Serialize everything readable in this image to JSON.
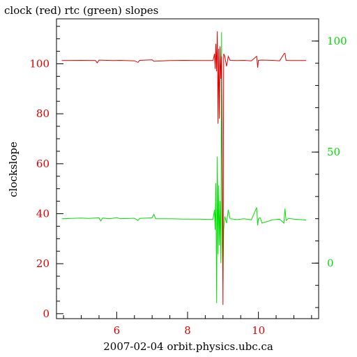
{
  "chart_data": {
    "type": "line",
    "title": "clock (red) rtc (green) slopes",
    "xlabel": "2007-02-04  orbit.physics.ubc.ca",
    "ylabel": "clockslope",
    "xlim": [
      4.3,
      11.7
    ],
    "ylim_left": [
      -2,
      118
    ],
    "ylim_right": [
      -25,
      110
    ],
    "x_ticks": [
      6,
      8,
      10
    ],
    "y_ticks_left": [
      0,
      20,
      40,
      60,
      80,
      100
    ],
    "y_ticks_right": [
      0,
      50,
      100
    ],
    "grid": false,
    "colors": {
      "clock": "#e00000",
      "rtc": "#00e000",
      "axis": "#000000",
      "left_tick_labels": "#e00000",
      "right_tick_labels": "#00e000"
    },
    "series": [
      {
        "name": "clock",
        "axis": "left",
        "color": "#e00000",
        "x": [
          4.45,
          5.0,
          5.4,
          5.45,
          5.5,
          5.9,
          6.1,
          6.5,
          6.6,
          6.65,
          7.0,
          7.05,
          7.5,
          7.9,
          8.3,
          8.6,
          8.72,
          8.76,
          8.78,
          8.8,
          8.82,
          8.84,
          8.86,
          8.88,
          8.9,
          8.92,
          8.94,
          8.96,
          8.98,
          9.0,
          9.02,
          9.05,
          9.1,
          9.15,
          9.2,
          9.4,
          9.6,
          9.8,
          9.95,
          9.98,
          10.0,
          10.05,
          10.4,
          10.6,
          10.72,
          10.75,
          10.78,
          10.85,
          11.0,
          11.2,
          11.35
        ],
        "y": [
          101.3,
          101.4,
          101.3,
          100.4,
          101.5,
          101.3,
          101.4,
          101.2,
          100.6,
          101.4,
          101.6,
          101.0,
          101.3,
          101.4,
          101.3,
          101.3,
          101.3,
          104.0,
          98.0,
          108.0,
          97.0,
          113.0,
          76.0,
          106.0,
          78.0,
          107.0,
          94.0,
          103.0,
          56.0,
          3.5,
          104.0,
          103.0,
          99.0,
          103.0,
          101.4,
          101.3,
          101.4,
          101.2,
          103.0,
          98.5,
          101.3,
          101.5,
          101.4,
          101.2,
          104.0,
          104.2,
          101.4,
          101.3,
          101.3,
          101.3,
          101.3
        ]
      },
      {
        "name": "rtc",
        "axis": "right",
        "color": "#00e000",
        "x": [
          4.45,
          5.0,
          5.2,
          5.5,
          5.55,
          5.6,
          5.8,
          6.0,
          6.1,
          6.5,
          6.6,
          6.65,
          7.0,
          7.05,
          7.1,
          7.5,
          7.9,
          8.3,
          8.6,
          8.72,
          8.76,
          8.78,
          8.8,
          8.82,
          8.84,
          8.86,
          8.88,
          8.9,
          8.92,
          8.94,
          8.96,
          8.98,
          9.0,
          9.02,
          9.05,
          9.1,
          9.15,
          9.2,
          9.4,
          9.6,
          9.8,
          9.95,
          9.98,
          10.0,
          10.05,
          10.1,
          10.4,
          10.6,
          10.72,
          10.75,
          10.78,
          10.85,
          11.0,
          11.2,
          11.35
        ],
        "y": [
          20.0,
          20.3,
          20.1,
          20.4,
          19.0,
          20.3,
          20.0,
          20.5,
          20.0,
          20.2,
          19.2,
          20.1,
          20.4,
          22.0,
          20.0,
          20.0,
          19.8,
          19.8,
          19.7,
          19.7,
          24.0,
          15.0,
          36.0,
          -18.0,
          48.0,
          4.0,
          35.0,
          8.0,
          28.0,
          0.0,
          104.0,
          8.0,
          -8.0,
          15.0,
          21.0,
          18.0,
          24.0,
          20.0,
          19.6,
          20.0,
          19.5,
          25.0,
          17.0,
          20.0,
          20.5,
          18.0,
          19.5,
          19.8,
          18.0,
          24.5,
          19.2,
          20.1,
          19.8,
          19.6,
          19.4
        ]
      }
    ]
  }
}
